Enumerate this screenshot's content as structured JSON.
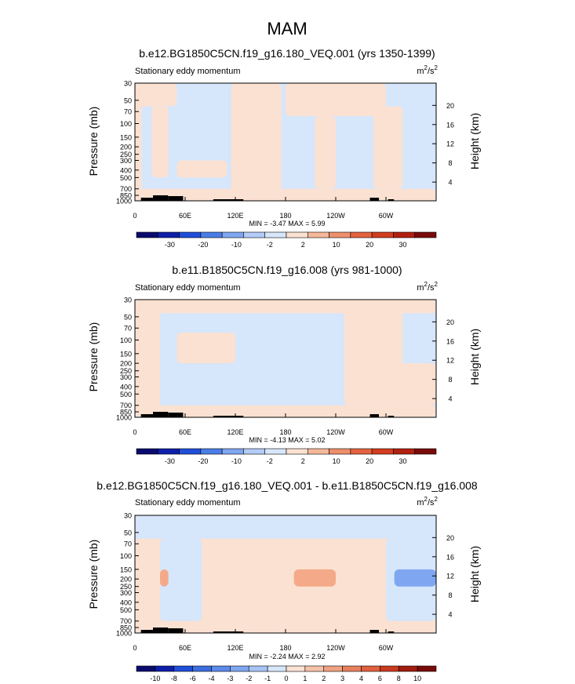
{
  "figure_title": "MAM",
  "chart_data": [
    {
      "type": "heatmap",
      "title": "b.e12.BG1850C5CN.f19_g16.180_VEQ.001 (yrs 1350-1399)",
      "left_string": "Stationary eddy momentum",
      "units": [
        "m",
        "2",
        "/s",
        "2"
      ],
      "ylabel": "Pressure (mb)",
      "y2label": "Height (km)",
      "y_ticks": [
        "30",
        "50",
        "70",
        "100",
        "150",
        "200",
        "250",
        "300",
        "400",
        "500",
        "700",
        "850",
        "1000"
      ],
      "y2_ticks": [
        "20",
        "16",
        "12",
        "8",
        "4"
      ],
      "x_ticks": [
        "0",
        "60E",
        "120E",
        "180",
        "120W",
        "60W"
      ],
      "min_max": "MIN = -3.47  MAX =  5.99",
      "colorbar_labels": [
        "-30",
        "-20",
        "-10",
        "-2",
        "2",
        "10",
        "20",
        "30"
      ],
      "colorbar_colors": [
        "#0a0a6e",
        "#0d1fa8",
        "#1f4fd8",
        "#4a7de6",
        "#7fa6f0",
        "#b3ccf7",
        "#d6e6fb",
        "#fbe1d2",
        "#f6b89a",
        "#ee8f6c",
        "#e4623f",
        "#d33c1f",
        "#b2200f",
        "#7a0a0a"
      ],
      "regions": [
        {
          "level": "small_positive",
          "x": [
            0,
            8
          ],
          "p": [
            30,
            1000
          ]
        },
        {
          "level": "small_positive",
          "x": [
            0,
            50
          ],
          "p": [
            30,
            60
          ]
        },
        {
          "level": "small_positive",
          "x": [
            20,
            40
          ],
          "p": [
            60,
            500
          ]
        },
        {
          "level": "small_positive",
          "x": [
            115,
            175
          ],
          "p": [
            30,
            1000
          ]
        },
        {
          "level": "small_positive",
          "x": [
            180,
            300
          ],
          "p": [
            30,
            80
          ]
        },
        {
          "level": "small_positive",
          "x": [
            215,
            240
          ],
          "p": [
            80,
            700
          ]
        },
        {
          "level": "small_positive",
          "x": [
            285,
            320
          ],
          "p": [
            60,
            700
          ]
        },
        {
          "level": "small_positive",
          "x": [
            50,
            110
          ],
          "p": [
            300,
            500
          ]
        },
        {
          "level": "small_positive",
          "x": [
            0,
            360
          ],
          "p": [
            700,
            1000
          ]
        }
      ]
    },
    {
      "type": "heatmap",
      "title": "b.e11.B1850C5CN.f19_g16.008 (yrs 981-1000)",
      "left_string": "Stationary eddy momentum",
      "units": [
        "m",
        "2",
        "/s",
        "2"
      ],
      "ylabel": "Pressure (mb)",
      "y2label": "Height (km)",
      "y_ticks": [
        "30",
        "50",
        "70",
        "100",
        "150",
        "200",
        "250",
        "300",
        "400",
        "500",
        "700",
        "850",
        "1000"
      ],
      "y2_ticks": [
        "20",
        "16",
        "12",
        "8",
        "4"
      ],
      "x_ticks": [
        "0",
        "60E",
        "120E",
        "180",
        "120W",
        "60W"
      ],
      "min_max": "MIN = -4.13  MAX =  5.02",
      "colorbar_labels": [
        "-30",
        "-20",
        "-10",
        "-2",
        "2",
        "10",
        "20",
        "30"
      ],
      "colorbar_colors": [
        "#0a0a6e",
        "#0d1fa8",
        "#1f4fd8",
        "#4a7de6",
        "#7fa6f0",
        "#b3ccf7",
        "#d6e6fb",
        "#fbe1d2",
        "#f6b89a",
        "#ee8f6c",
        "#e4623f",
        "#d33c1f",
        "#b2200f",
        "#7a0a0a"
      ],
      "regions": [
        {
          "level": "small_positive",
          "x": [
            0,
            360
          ],
          "p": [
            30,
            45
          ]
        },
        {
          "level": "small_positive",
          "x": [
            0,
            30
          ],
          "p": [
            30,
            1000
          ]
        },
        {
          "level": "small_positive",
          "x": [
            50,
            120
          ],
          "p": [
            80,
            200
          ]
        },
        {
          "level": "small_positive",
          "x": [
            250,
            320
          ],
          "p": [
            30,
            700
          ]
        },
        {
          "level": "small_positive",
          "x": [
            300,
            360
          ],
          "p": [
            200,
            700
          ]
        },
        {
          "level": "small_positive",
          "x": [
            0,
            360
          ],
          "p": [
            700,
            1000
          ]
        },
        {
          "level": "small_negative",
          "x": [
            180,
            240
          ],
          "p": [
            150,
            250
          ]
        }
      ]
    },
    {
      "type": "heatmap",
      "title": "b.e12.BG1850C5CN.f19_g16.180_VEQ.001 - b.e11.B1850C5CN.f19_g16.008",
      "left_string": "Stationary eddy momentum",
      "units": [
        "m",
        "2",
        "/s",
        "2"
      ],
      "ylabel": "Pressure (mb)",
      "y2label": "Height (km)",
      "y_ticks": [
        "30",
        "50",
        "70",
        "100",
        "150",
        "200",
        "250",
        "300",
        "400",
        "500",
        "700",
        "850",
        "1000"
      ],
      "y2_ticks": [
        "20",
        "16",
        "12",
        "8",
        "4"
      ],
      "x_ticks": [
        "0",
        "60E",
        "120E",
        "180",
        "120W",
        "60W"
      ],
      "min_max": "MIN = -2.24  MAX =  2.92",
      "colorbar_labels": [
        "-10",
        "-8",
        "-6",
        "-4",
        "-3",
        "-2",
        "-1",
        "0",
        "1",
        "2",
        "3",
        "4",
        "6",
        "8",
        "10"
      ],
      "colorbar_colors": [
        "#0a0a6e",
        "#0d1fa8",
        "#1f4fd8",
        "#3a6ee0",
        "#5b8ae9",
        "#7fa6f0",
        "#a7c4f5",
        "#d6e6fb",
        "#fbe1d2",
        "#f6c2a8",
        "#f0a282",
        "#e8805e",
        "#e0603e",
        "#c83a1f",
        "#a11d0f",
        "#7a0a0a"
      ],
      "regions": [
        {
          "level": "small_positive",
          "x": [
            0,
            360
          ],
          "p": [
            60,
            1000
          ]
        },
        {
          "level": "small_negative",
          "x": [
            0,
            360
          ],
          "p": [
            30,
            60
          ]
        },
        {
          "level": "small_negative",
          "x": [
            30,
            80
          ],
          "p": [
            60,
            700
          ]
        },
        {
          "level": "small_negative",
          "x": [
            300,
            360
          ],
          "p": [
            60,
            700
          ]
        },
        {
          "level": "mid_positive",
          "x": [
            190,
            240
          ],
          "p": [
            150,
            250
          ]
        },
        {
          "level": "mid_positive",
          "x": [
            30,
            40
          ],
          "p": [
            150,
            250
          ]
        },
        {
          "level": "mid_negative",
          "x": [
            310,
            360
          ],
          "p": [
            150,
            250
          ]
        }
      ]
    }
  ]
}
